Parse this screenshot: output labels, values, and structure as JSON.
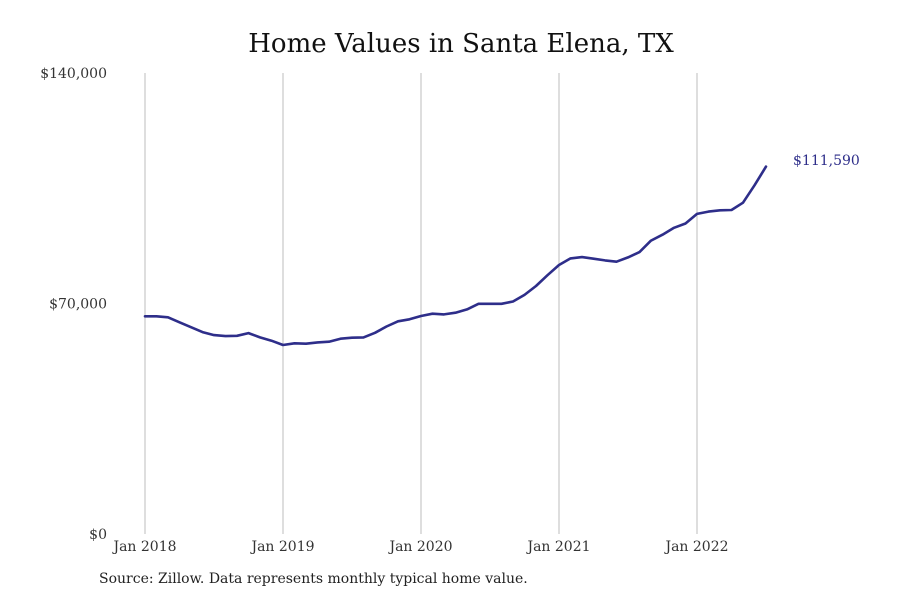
{
  "chart_data": {
    "type": "line",
    "title": "Home Values in Santa Elena, TX",
    "ylim": [
      0,
      140000
    ],
    "yticks": [
      {
        "value": 0,
        "label": "$0"
      },
      {
        "value": 70000,
        "label": "$70,000"
      },
      {
        "value": 140000,
        "label": "$140,000"
      }
    ],
    "xticks": [
      {
        "index": 0,
        "label": "Jan 2018"
      },
      {
        "index": 12,
        "label": "Jan 2019"
      },
      {
        "index": 24,
        "label": "Jan 2020"
      },
      {
        "index": 36,
        "label": "Jan 2021"
      },
      {
        "index": 48,
        "label": "Jan 2022"
      }
    ],
    "grid": "vertical at year ticks",
    "line_color": "#2e2e8a",
    "end_label": "$111,590",
    "series": [
      {
        "x": [
          "2018-01",
          "2018-02",
          "2018-03",
          "2018-04",
          "2018-05",
          "2018-06",
          "2018-07",
          "2018-08",
          "2018-09",
          "2018-10",
          "2018-11",
          "2018-12",
          "2019-01",
          "2019-02",
          "2019-03",
          "2019-04",
          "2019-05",
          "2019-06",
          "2019-07",
          "2019-08",
          "2019-09",
          "2019-10",
          "2019-11",
          "2019-12",
          "2020-01",
          "2020-02",
          "2020-03",
          "2020-04",
          "2020-05",
          "2020-06",
          "2020-07",
          "2020-08",
          "2020-09",
          "2020-10",
          "2020-11",
          "2020-12",
          "2021-01",
          "2021-02",
          "2021-03",
          "2021-04",
          "2021-05",
          "2021-06",
          "2021-07",
          "2021-08",
          "2021-09",
          "2021-10",
          "2021-11",
          "2021-12",
          "2022-01",
          "2022-02",
          "2022-03",
          "2022-04",
          "2022-05",
          "2022-06",
          "2022-07"
        ],
        "values": [
          66100,
          66100,
          65800,
          64300,
          62800,
          61300,
          60400,
          60100,
          60200,
          61000,
          59700,
          58700,
          57400,
          57900,
          57800,
          58200,
          58400,
          59300,
          59600,
          59700,
          61100,
          63000,
          64600,
          65200,
          66200,
          66900,
          66700,
          67200,
          68200,
          69900,
          69900,
          69900,
          70600,
          72600,
          75300,
          78600,
          81700,
          83700,
          84100,
          83600,
          83100,
          82700,
          84000,
          85600,
          89100,
          90900,
          93000,
          94300,
          97200,
          97900,
          98300,
          98400,
          100600,
          105900,
          111590
        ]
      }
    ]
  },
  "footer": {
    "source": "Source: Zillow. Data represents monthly typical home value."
  }
}
